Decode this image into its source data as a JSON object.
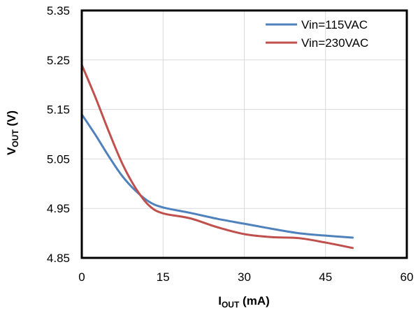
{
  "chart_data": {
    "type": "line",
    "title": "",
    "xlabel_main": "I",
    "xlabel_sub": "OUT",
    "xlabel_unit": " (mA)",
    "ylabel_main": "V",
    "ylabel_sub": "OUT",
    "ylabel_unit": " (V)",
    "xlim": [
      0,
      60
    ],
    "ylim": [
      4.85,
      5.35
    ],
    "xticks": [
      "0",
      "15",
      "30",
      "45",
      "60"
    ],
    "yticks": [
      "4.85",
      "4.95",
      "5.05",
      "5.15",
      "5.25",
      "5.35"
    ],
    "grid": true,
    "legend_position": "top-right",
    "series": [
      {
        "name": "Vin=115VAC",
        "color": "#4f81bd",
        "x": [
          0,
          2.5,
          5,
          7.5,
          10,
          12.5,
          15,
          20,
          25,
          30,
          35,
          40,
          45,
          50
        ],
        "y": [
          5.14,
          5.099,
          5.055,
          5.015,
          4.985,
          4.963,
          4.952,
          4.941,
          4.929,
          4.919,
          4.909,
          4.9,
          4.895,
          4.891
        ]
      },
      {
        "name": "Vin=230VAC",
        "color": "#c0504d",
        "x": [
          0,
          2.5,
          5,
          7.5,
          10,
          12.5,
          15,
          20,
          25,
          30,
          35,
          40,
          45,
          50
        ],
        "y": [
          5.24,
          5.175,
          5.105,
          5.04,
          4.99,
          4.955,
          4.94,
          4.93,
          4.912,
          4.898,
          4.892,
          4.89,
          4.881,
          4.87
        ]
      }
    ]
  }
}
